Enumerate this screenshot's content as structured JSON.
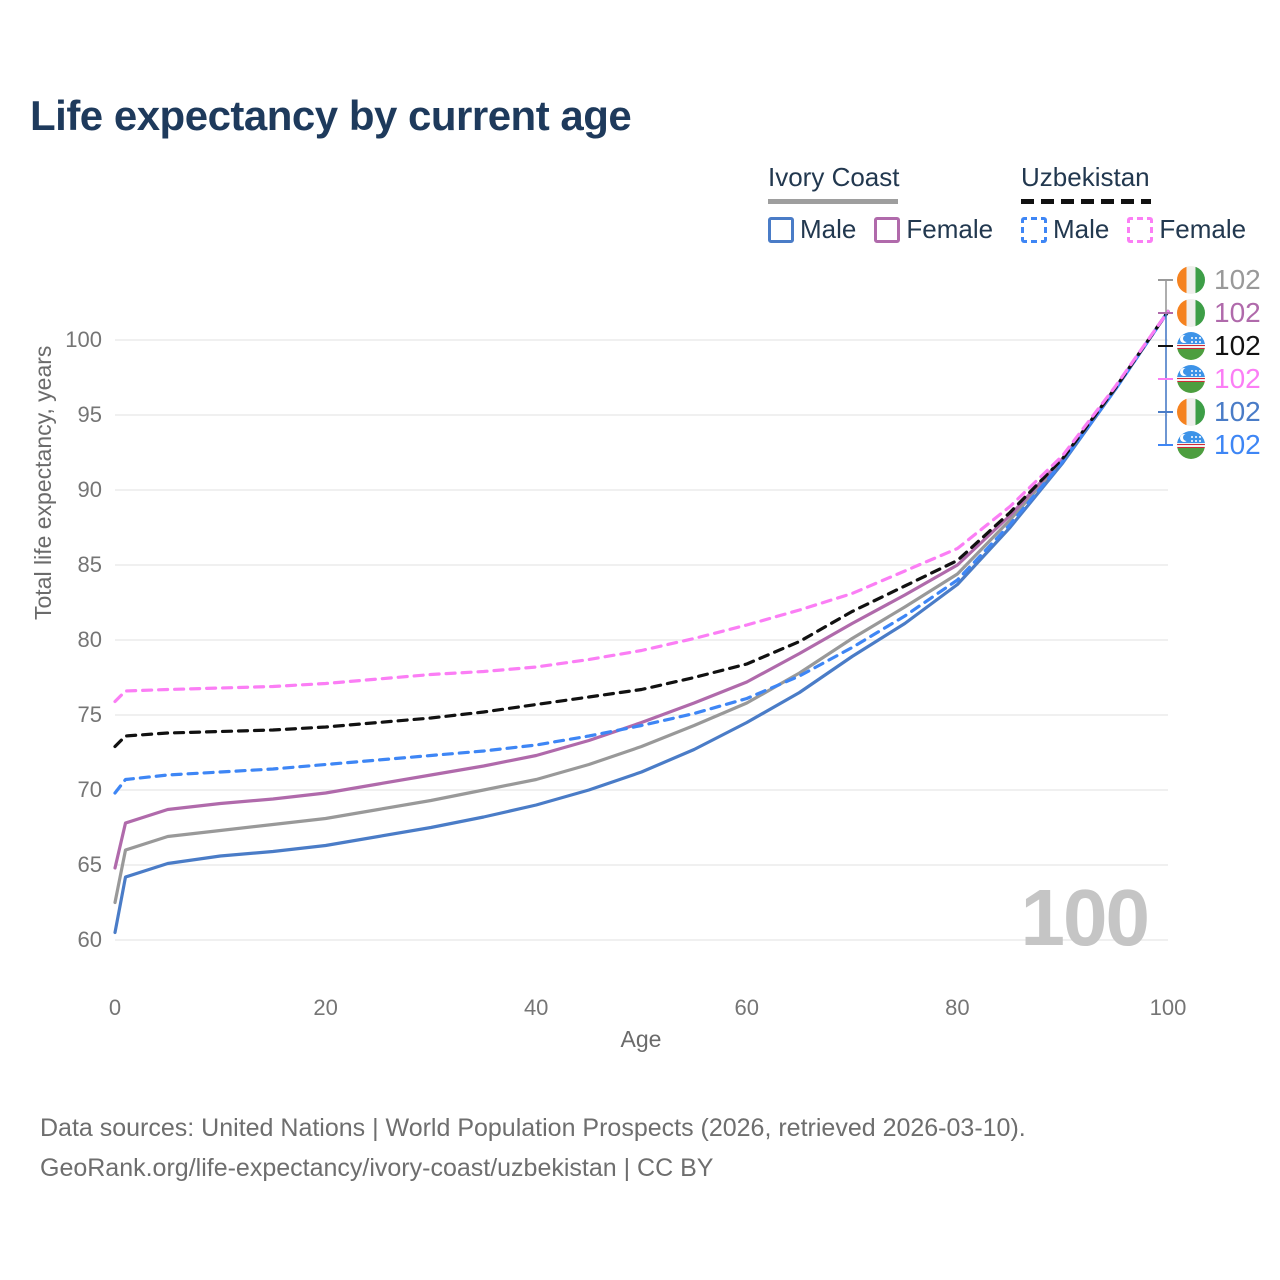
{
  "title": "Life expectancy by current age",
  "legend": {
    "groups": [
      {
        "label": "Ivory Coast",
        "line_style": "solid",
        "line_color": "#9e9e9e",
        "items": [
          {
            "label": "Male",
            "color": "#4a7cc7",
            "dashed": false
          },
          {
            "label": "Female",
            "color": "#b06aab",
            "dashed": false
          }
        ]
      },
      {
        "label": "Uzbekistan",
        "line_style": "dashed",
        "line_color": "#111111",
        "items": [
          {
            "label": "Male",
            "color": "#3e86f5",
            "dashed": true
          },
          {
            "label": "Female",
            "color": "#fb7ef5",
            "dashed": true
          }
        ]
      }
    ]
  },
  "axes": {
    "x_label": "Age",
    "y_label": "Total life expectancy, years",
    "x_ticks": [
      0,
      20,
      40,
      60,
      80,
      100
    ],
    "y_ticks": [
      60,
      65,
      70,
      75,
      80,
      85,
      90,
      95,
      100
    ]
  },
  "watermark_age": "100",
  "footer": {
    "line1": "Data sources: United Nations | World Population Prospects (2026, retrieved 2026-03-10).",
    "line2": "GeoRank.org/life-expectancy/ivory-coast/uzbekistan | CC BY"
  },
  "chart_data": {
    "type": "line",
    "title": "Life expectancy by current age",
    "xlabel": "Age",
    "ylabel": "Total life expectancy, years",
    "xlim": [
      0,
      100
    ],
    "ylim": [
      58,
      103
    ],
    "grid": "horizontal",
    "x": [
      0,
      1,
      5,
      10,
      15,
      20,
      25,
      30,
      35,
      40,
      45,
      50,
      55,
      60,
      65,
      70,
      75,
      80,
      85,
      90,
      95,
      100
    ],
    "series": [
      {
        "name": "Ivory Coast — Both sexes",
        "country": "Ivory Coast",
        "sex": "both",
        "color": "#999999",
        "dashed": false,
        "end_label": "102",
        "values": [
          62.5,
          66.0,
          66.9,
          67.3,
          67.7,
          68.1,
          68.7,
          69.3,
          70.0,
          70.7,
          71.7,
          72.9,
          74.3,
          75.8,
          77.8,
          80.1,
          82.2,
          84.4,
          88.0,
          92.0,
          96.8,
          101.9
        ]
      },
      {
        "name": "Ivory Coast — Female",
        "country": "Ivory Coast",
        "sex": "female",
        "color": "#b06aab",
        "dashed": false,
        "end_label": "102",
        "values": [
          64.8,
          67.8,
          68.7,
          69.1,
          69.4,
          69.8,
          70.4,
          71.0,
          71.6,
          72.3,
          73.3,
          74.5,
          75.8,
          77.2,
          79.1,
          81.1,
          83.0,
          85.0,
          88.3,
          92.1,
          96.8,
          101.9
        ]
      },
      {
        "name": "Ivory Coast — Male",
        "country": "Ivory Coast",
        "sex": "male",
        "color": "#4a7cc7",
        "dashed": false,
        "end_label": "102",
        "values": [
          60.5,
          64.2,
          65.1,
          65.6,
          65.9,
          66.3,
          66.9,
          67.5,
          68.2,
          69.0,
          70.0,
          71.2,
          72.7,
          74.5,
          76.5,
          78.9,
          81.1,
          83.7,
          87.5,
          91.8,
          96.7,
          101.9
        ]
      },
      {
        "name": "Uzbekistan — Male",
        "country": "Uzbekistan",
        "sex": "male",
        "color": "#3e86f5",
        "dashed": true,
        "end_label": "102",
        "values": [
          69.8,
          70.7,
          71.0,
          71.2,
          71.4,
          71.7,
          72.0,
          72.3,
          72.6,
          73.0,
          73.6,
          74.3,
          75.1,
          76.1,
          77.6,
          79.5,
          81.6,
          84.0,
          87.7,
          91.9,
          96.7,
          101.9
        ]
      },
      {
        "name": "Uzbekistan — Both sexes",
        "country": "Uzbekistan",
        "sex": "both",
        "color": "#111111",
        "dashed": true,
        "end_label": "102",
        "values": [
          72.9,
          73.6,
          73.8,
          73.9,
          74.0,
          74.2,
          74.5,
          74.8,
          75.2,
          75.7,
          76.2,
          76.7,
          77.5,
          78.4,
          79.9,
          81.9,
          83.6,
          85.3,
          88.5,
          92.1,
          96.8,
          101.9
        ]
      },
      {
        "name": "Uzbekistan — Female",
        "country": "Uzbekistan",
        "sex": "female",
        "color": "#fb7ef5",
        "dashed": true,
        "end_label": "102",
        "values": [
          75.9,
          76.6,
          76.7,
          76.8,
          76.9,
          77.1,
          77.4,
          77.7,
          77.9,
          78.2,
          78.7,
          79.3,
          80.1,
          81.0,
          82.0,
          83.1,
          84.6,
          86.1,
          88.9,
          92.3,
          96.9,
          101.9
        ]
      }
    ],
    "end_label_rows": [
      0,
      1,
      4,
      5,
      2,
      3
    ]
  }
}
